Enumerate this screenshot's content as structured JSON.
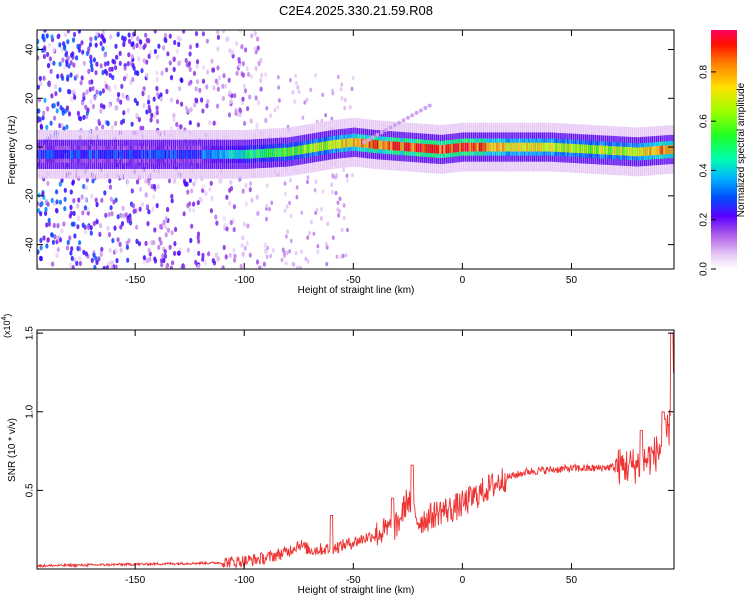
{
  "figure": {
    "title": "C2E4.2025.330.21.59.R08"
  },
  "chart_data": [
    {
      "type": "heatmap",
      "title": "C2E4.2025.330.21.59.R08",
      "xlabel": "Height of straight line (km)",
      "ylabel": "Frequency (Hz)",
      "xlim": [
        -195,
        97
      ],
      "ylim": [
        -50,
        48
      ],
      "xticks": [
        -150,
        -100,
        -50,
        0,
        50
      ],
      "xtick_labels": [
        "-150",
        "-100",
        "-50",
        "0",
        "50"
      ],
      "yticks": [
        -40,
        -20,
        0,
        20,
        40
      ],
      "ytick_labels": [
        "-40",
        "-20",
        "0",
        "20",
        "40"
      ],
      "colorbar": {
        "label": "Normalized spectral amplitude",
        "range": [
          0,
          0.97
        ],
        "ticks": [
          0.0,
          0.2,
          0.4,
          0.6,
          0.8
        ],
        "tick_labels": [
          "0.0",
          "0.2",
          "0.4",
          "0.6",
          "0.8"
        ],
        "colormap": [
          "#ffffff",
          "#e6c8f5",
          "#8a2be2",
          "#3a00ff",
          "#0050ff",
          "#00c8ff",
          "#00ff80",
          "#40ff00",
          "#c8ff00",
          "#ffd000",
          "#ff8000",
          "#ff0000",
          "#ff0050"
        ]
      },
      "ridge": {
        "description_points_x": [
          -120,
          -100,
          -80,
          -60,
          -50,
          -40,
          -25,
          -10,
          0,
          20,
          40,
          60,
          80,
          95
        ],
        "description_points_freq": [
          -3,
          -3,
          -2,
          1,
          2,
          1,
          0,
          -1,
          0,
          0,
          0,
          -1,
          -2,
          -1
        ],
        "description_points_amp": [
          0.35,
          0.5,
          0.6,
          0.7,
          0.8,
          0.85,
          0.9,
          0.9,
          0.95,
          0.75,
          0.7,
          0.65,
          0.7,
          0.9
        ]
      },
      "noise_region_x": [
        -195,
        -90
      ],
      "grid": false
    },
    {
      "type": "line",
      "xlabel": "Height of straight line (km)",
      "ylabel": "SNR (10 * v/v)",
      "y_multiplier_label": "(x10^4)",
      "xlim": [
        -195,
        97
      ],
      "ylim": [
        0,
        1.52
      ],
      "xticks": [
        -150,
        -100,
        -50,
        0,
        50
      ],
      "xtick_labels": [
        "-150",
        "-100",
        "-50",
        "0",
        "50"
      ],
      "yticks": [
        0.5,
        1.0,
        1.5
      ],
      "ytick_labels": [
        "0.5",
        "1.0",
        "1.5"
      ],
      "color": "#ee3333",
      "series": [
        {
          "x": [
            -195,
            -150,
            -110,
            -100,
            -90,
            -80,
            -75,
            -70,
            -60,
            -50,
            -40,
            -30,
            -25,
            -20,
            -15,
            -10,
            -5,
            0,
            10,
            20,
            30,
            40,
            50,
            60,
            70,
            80,
            85,
            90,
            95,
            97
          ],
          "values": [
            0.02,
            0.03,
            0.04,
            0.05,
            0.07,
            0.11,
            0.16,
            0.12,
            0.13,
            0.17,
            0.22,
            0.27,
            0.45,
            0.3,
            0.33,
            0.37,
            0.38,
            0.41,
            0.5,
            0.58,
            0.62,
            0.63,
            0.64,
            0.64,
            0.65,
            0.66,
            0.7,
            0.75,
            0.9,
            1.4
          ]
        }
      ],
      "spikes": [
        {
          "x": -23,
          "y": 0.66
        },
        {
          "x": -32,
          "y": 0.45
        },
        {
          "x": -60,
          "y": 0.34
        },
        {
          "x": 82,
          "y": 0.88
        },
        {
          "x": 92,
          "y": 1.0
        },
        {
          "x": 96,
          "y": 1.5
        }
      ],
      "grid": false
    }
  ]
}
